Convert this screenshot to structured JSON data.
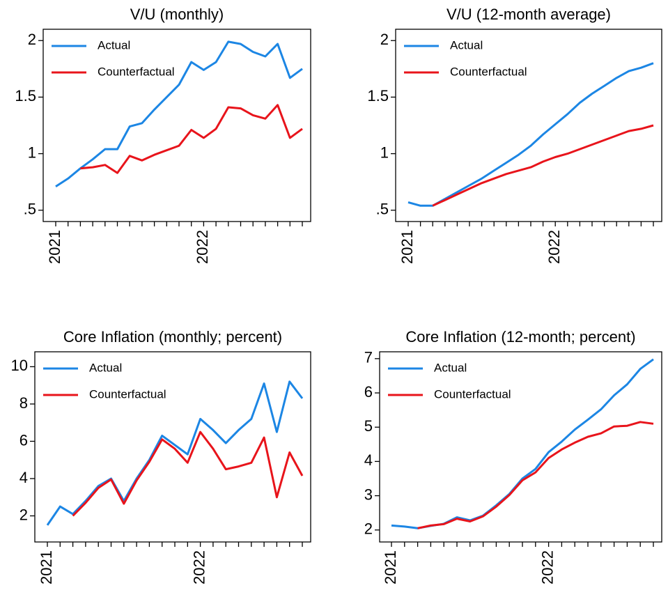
{
  "chart_data": [
    {
      "type": "line",
      "title": "V/U (monthly)",
      "categories": [
        "2021",
        null,
        null,
        null,
        null,
        null,
        null,
        null,
        null,
        null,
        null,
        null,
        "2022",
        null,
        null,
        null,
        null,
        null,
        null,
        null,
        null
      ],
      "series": [
        {
          "name": "Actual",
          "color": "#1c86e4",
          "values": [
            0.71,
            0.78,
            0.87,
            0.95,
            1.04,
            1.04,
            1.24,
            1.27,
            1.39,
            1.5,
            1.61,
            1.81,
            1.74,
            1.81,
            1.99,
            1.97,
            1.9,
            1.86,
            1.97,
            1.67,
            1.75
          ]
        },
        {
          "name": "Counterfactual",
          "color": "#e8141b",
          "values": [
            null,
            null,
            0.87,
            0.88,
            0.9,
            0.83,
            0.98,
            0.94,
            0.99,
            1.03,
            1.07,
            1.21,
            1.14,
            1.22,
            1.41,
            1.4,
            1.34,
            1.31,
            1.43,
            1.14,
            1.22
          ]
        }
      ],
      "ylim": [
        0.4,
        2.1
      ],
      "yticks": [
        {
          "value": 0.5,
          "label": ".5"
        },
        1,
        1.5,
        2
      ],
      "legend": "upper left"
    },
    {
      "type": "line",
      "title": "V/U (12-month average)",
      "categories": [
        "2021",
        null,
        null,
        null,
        null,
        null,
        null,
        null,
        null,
        null,
        null,
        null,
        "2022",
        null,
        null,
        null,
        null,
        null,
        null,
        null,
        null
      ],
      "series": [
        {
          "name": "Actual",
          "color": "#1c86e4",
          "values": [
            0.57,
            0.54,
            0.54,
            0.6,
            0.66,
            0.72,
            0.78,
            0.85,
            0.92,
            0.99,
            1.07,
            1.17,
            1.26,
            1.35,
            1.45,
            1.53,
            1.6,
            1.67,
            1.73,
            1.76,
            1.8
          ]
        },
        {
          "name": "Counterfactual",
          "color": "#e8141b",
          "values": [
            null,
            null,
            0.54,
            0.59,
            0.64,
            0.69,
            0.74,
            0.78,
            0.82,
            0.85,
            0.88,
            0.93,
            0.97,
            1.0,
            1.04,
            1.08,
            1.12,
            1.16,
            1.2,
            1.22,
            1.25
          ]
        }
      ],
      "ylim": [
        0.4,
        2.1
      ],
      "yticks": [
        {
          "value": 0.5,
          "label": ".5"
        },
        1,
        1.5,
        2
      ],
      "legend": "upper left"
    },
    {
      "type": "line",
      "title": "Core Inflation (monthly; percent)",
      "categories": [
        "2021",
        null,
        null,
        null,
        null,
        null,
        null,
        null,
        null,
        null,
        null,
        null,
        "2022",
        null,
        null,
        null,
        null,
        null,
        null,
        null,
        null
      ],
      "series": [
        {
          "name": "Actual",
          "color": "#1c86e4",
          "values": [
            1.5,
            2.5,
            2.1,
            2.8,
            3.6,
            4.0,
            2.8,
            4.0,
            5.0,
            6.3,
            5.8,
            5.3,
            7.2,
            6.6,
            5.9,
            6.6,
            7.2,
            9.1,
            6.5,
            9.2,
            8.3
          ]
        },
        {
          "name": "Counterfactual",
          "color": "#e8141b",
          "values": [
            null,
            null,
            2.0,
            2.7,
            3.5,
            3.95,
            2.65,
            3.9,
            4.9,
            6.1,
            5.6,
            4.85,
            6.5,
            5.6,
            4.5,
            4.65,
            4.85,
            6.2,
            3.0,
            5.4,
            4.15
          ]
        }
      ],
      "ylim": [
        0.6,
        10.8
      ],
      "yticks": [
        2,
        4,
        6,
        8,
        10
      ],
      "legend": "upper left"
    },
    {
      "type": "line",
      "title": "Core Inflation (12-month; percent)",
      "categories": [
        "2021",
        null,
        null,
        null,
        null,
        null,
        null,
        null,
        null,
        null,
        null,
        null,
        "2022",
        null,
        null,
        null,
        null,
        null,
        null,
        null,
        null
      ],
      "series": [
        {
          "name": "Actual",
          "color": "#1c86e4",
          "values": [
            2.13,
            2.1,
            2.05,
            2.12,
            2.18,
            2.37,
            2.28,
            2.42,
            2.72,
            3.05,
            3.5,
            3.78,
            4.27,
            4.58,
            4.93,
            5.22,
            5.52,
            5.93,
            6.25,
            6.7,
            6.98
          ]
        },
        {
          "name": "Counterfactual",
          "color": "#e8141b",
          "values": [
            null,
            null,
            2.05,
            2.13,
            2.17,
            2.33,
            2.25,
            2.4,
            2.68,
            3.02,
            3.45,
            3.68,
            4.1,
            4.35,
            4.55,
            4.72,
            4.82,
            5.02,
            5.04,
            5.15,
            5.1
          ]
        }
      ],
      "ylim": [
        1.65,
        7.2
      ],
      "yticks": [
        2,
        3,
        4,
        5,
        6,
        7
      ],
      "legend": "upper left"
    }
  ]
}
